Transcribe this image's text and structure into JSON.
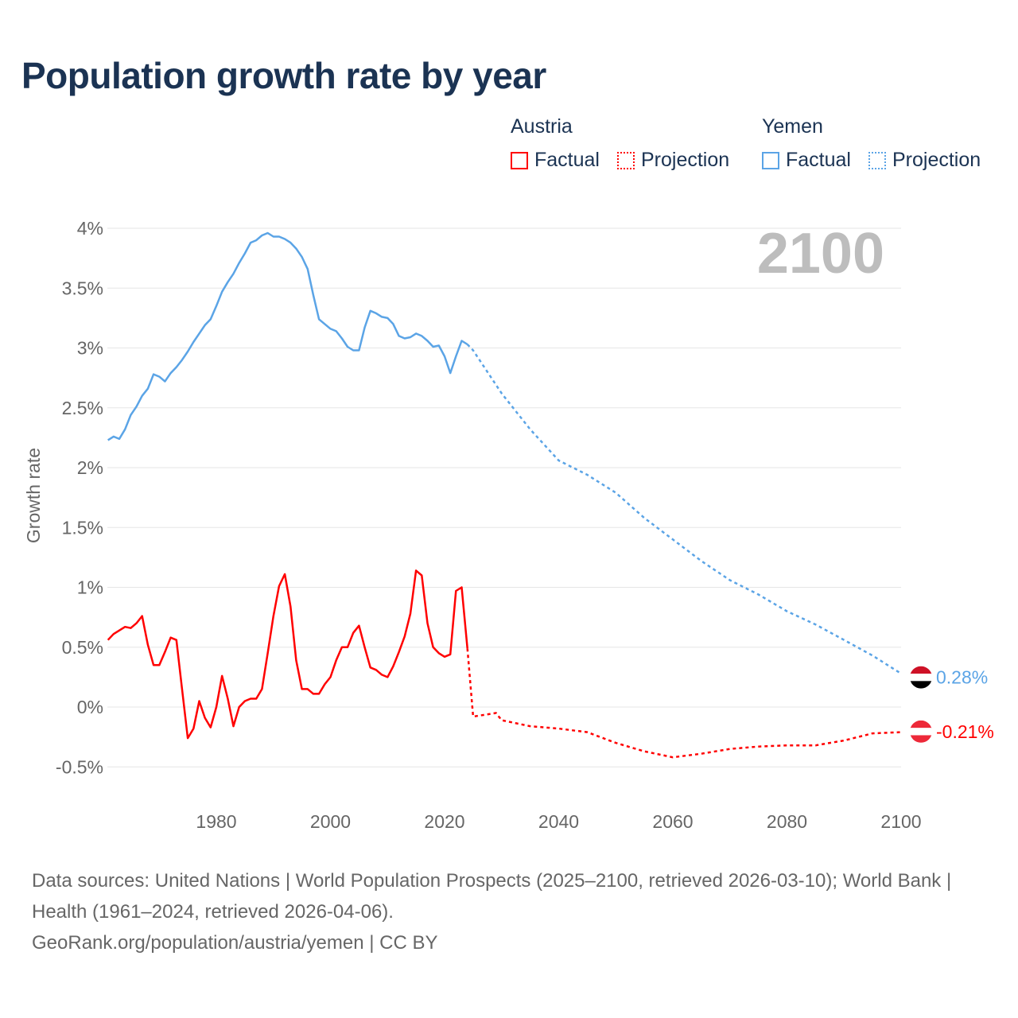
{
  "title": "Population growth rate by year",
  "legend": {
    "groups": [
      {
        "name": "Austria",
        "factual": "Factual",
        "projection": "Projection",
        "color": "#ff0000"
      },
      {
        "name": "Yemen",
        "factual": "Factual",
        "projection": "Projection",
        "color": "#5ba4e6"
      }
    ]
  },
  "year_badge": "2100",
  "footer": {
    "sources": "Data sources: United Nations | World Population Prospects (2025–2100, retrieved 2026-03-10); World Bank | Health (1961–2024, retrieved 2026-04-06).",
    "credit": "GeoRank.org/population/austria/yemen | CC BY"
  },
  "chart_data": {
    "type": "line",
    "title": "Population growth rate by year",
    "xlabel": "",
    "ylabel": "Growth rate",
    "xlim": [
      1961,
      2100
    ],
    "ylim": [
      -0.5,
      4
    ],
    "grid": true,
    "x_ticks": [
      1980,
      2000,
      2020,
      2040,
      2060,
      2080,
      2100
    ],
    "x_tick_labels": [
      "1980",
      "2000",
      "2020",
      "2040",
      "2060",
      "2080",
      "2100"
    ],
    "y_ticks": [
      -0.5,
      0,
      0.5,
      1,
      1.5,
      2,
      2.5,
      3,
      3.5,
      4
    ],
    "y_tick_labels": [
      "-0.5%",
      "0%",
      "0.5%",
      "1%",
      "1.5%",
      "2%",
      "2.5%",
      "3%",
      "3.5%",
      "4%"
    ],
    "series": [
      {
        "name": "Austria",
        "color": "#ff0000",
        "factual": {
          "start_year": 1961,
          "values": [
            0.56,
            0.61,
            0.64,
            0.67,
            0.66,
            0.7,
            0.76,
            0.52,
            0.35,
            0.35,
            0.46,
            0.58,
            0.56,
            0.15,
            -0.26,
            -0.18,
            0.05,
            -0.09,
            -0.17,
            0.0,
            0.26,
            0.07,
            -0.16,
            0.0,
            0.05,
            0.07,
            0.07,
            0.15,
            0.45,
            0.76,
            1.01,
            1.11,
            0.84,
            0.39,
            0.15,
            0.15,
            0.11,
            0.11,
            0.19,
            0.25,
            0.39,
            0.5,
            0.5,
            0.62,
            0.68,
            0.5,
            0.33,
            0.31,
            0.27,
            0.25,
            0.34,
            0.46,
            0.59,
            0.78,
            1.14,
            1.1,
            0.7,
            0.5,
            0.45,
            0.42,
            0.44,
            0.97,
            1.0,
            0.49
          ]
        },
        "projection": {
          "years": [
            2024,
            2025,
            2029,
            2030,
            2035,
            2040,
            2045,
            2050,
            2055,
            2060,
            2065,
            2070,
            2075,
            2080,
            2085,
            2090,
            2095,
            2100
          ],
          "values": [
            0.49,
            -0.08,
            -0.05,
            -0.11,
            -0.16,
            -0.18,
            -0.21,
            -0.3,
            -0.37,
            -0.42,
            -0.39,
            -0.35,
            -0.33,
            -0.32,
            -0.32,
            -0.28,
            -0.22,
            -0.21
          ]
        },
        "end_label": "-0.21%"
      },
      {
        "name": "Yemen",
        "color": "#5ba4e6",
        "factual": {
          "start_year": 1961,
          "values": [
            2.23,
            2.26,
            2.24,
            2.32,
            2.44,
            2.51,
            2.6,
            2.66,
            2.78,
            2.76,
            2.72,
            2.79,
            2.84,
            2.9,
            2.97,
            3.05,
            3.12,
            3.19,
            3.24,
            3.35,
            3.47,
            3.55,
            3.62,
            3.71,
            3.79,
            3.88,
            3.9,
            3.94,
            3.96,
            3.93,
            3.93,
            3.91,
            3.88,
            3.83,
            3.76,
            3.66,
            3.44,
            3.24,
            3.2,
            3.16,
            3.14,
            3.08,
            3.01,
            2.98,
            2.98,
            3.17,
            3.31,
            3.29,
            3.26,
            3.25,
            3.2,
            3.1,
            3.08,
            3.09,
            3.12,
            3.1,
            3.06,
            3.01,
            3.02,
            2.93,
            2.79,
            2.93,
            3.06,
            3.03
          ]
        },
        "projection": {
          "years": [
            2024,
            2025,
            2030,
            2035,
            2040,
            2045,
            2050,
            2055,
            2060,
            2065,
            2070,
            2075,
            2080,
            2085,
            2090,
            2095,
            2100
          ],
          "values": [
            3.03,
            2.98,
            2.62,
            2.32,
            2.06,
            1.94,
            1.79,
            1.58,
            1.4,
            1.22,
            1.06,
            0.94,
            0.8,
            0.69,
            0.56,
            0.43,
            0.28
          ]
        },
        "end_label": "0.28%"
      }
    ]
  }
}
